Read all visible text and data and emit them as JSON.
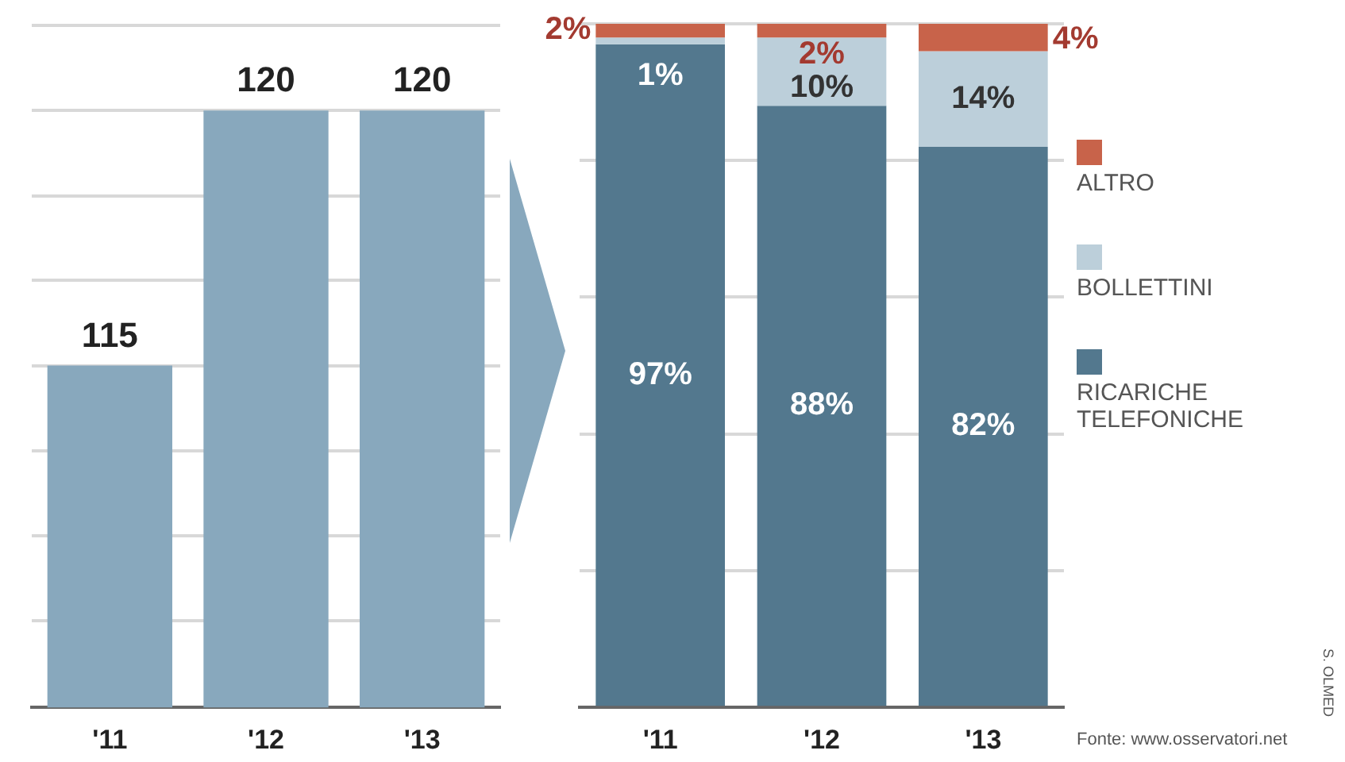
{
  "chart_data": [
    {
      "type": "bar",
      "categories": [
        "'11",
        "'12",
        "'13"
      ],
      "values": [
        115,
        120,
        120
      ],
      "color": "#88a8bd",
      "data_labels": true,
      "ylim": [
        108.3,
        121.7
      ],
      "yticks": [
        {
          "value": 110,
          "label": null
        },
        {
          "value": 111.67,
          "label": null
        },
        {
          "value": 113.33,
          "label": null
        },
        {
          "value": 115,
          "label": null
        },
        {
          "value": 116.67,
          "label": null
        },
        {
          "value": 118.33,
          "label": null
        },
        {
          "value": 120,
          "label": null
        },
        {
          "value": 121.67,
          "label": null
        }
      ],
      "grid": "y",
      "tick_labels": "x"
    },
    {
      "type": "bar",
      "stacked": true,
      "categories": [
        "'11",
        "'12",
        "'13"
      ],
      "series": [
        {
          "name": "RICARICHE TELEFONICHE",
          "color": "#53788e",
          "values": [
            97,
            88,
            82
          ],
          "value_labels": [
            "97%",
            "88%",
            "82%"
          ]
        },
        {
          "name": "BOLLETTINI",
          "color": "#bccfda",
          "values": [
            1,
            10,
            14
          ],
          "value_labels": [
            "1%",
            "10%",
            "14%"
          ]
        },
        {
          "name": "ALTRO",
          "color": "#c8634a",
          "values": [
            2,
            2,
            4
          ],
          "value_labels": [
            "2%",
            "2%",
            "4%"
          ]
        }
      ],
      "ylim": [
        0,
        100
      ],
      "yticks": [
        {
          "value": 0,
          "label": null
        },
        {
          "value": 20,
          "label": null
        },
        {
          "value": 40,
          "label": null
        },
        {
          "value": 60,
          "label": null
        },
        {
          "value": 80,
          "label": null
        },
        {
          "value": 100,
          "label": null
        }
      ],
      "grid": "y",
      "tick_labels": "x",
      "legend": "right",
      "annotations": [
        "Fonte: www.osservatori.net",
        "S. OLMED"
      ]
    }
  ]
}
